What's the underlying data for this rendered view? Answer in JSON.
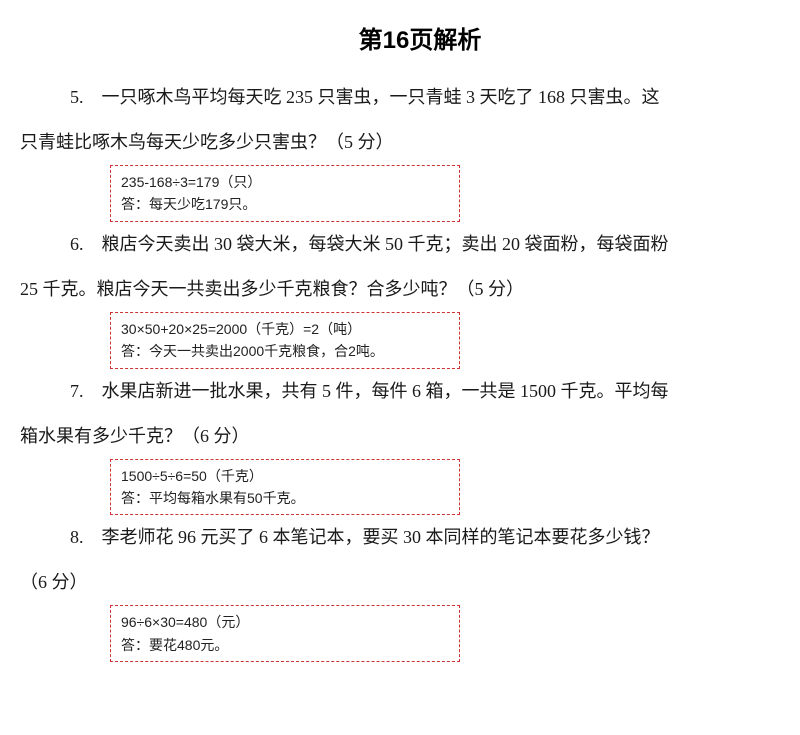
{
  "title": "第16页解析",
  "problems": {
    "p5": {
      "line1": "5.　一只啄木鸟平均每天吃 235 只害虫，一只青蛙 3 天吃了 168 只害虫。这",
      "line2": "只青蛙比啄木鸟每天少吃多少只害虫？（5 分）",
      "answer": {
        "calc": "235-168÷3=179（只）",
        "text": "答：每天少吃179只。"
      }
    },
    "p6": {
      "line1": "6.　粮店今天卖出 30 袋大米，每袋大米 50 千克；卖出 20 袋面粉，每袋面粉",
      "line2": "25 千克。粮店今天一共卖出多少千克粮食？合多少吨？（5 分）",
      "answer": {
        "calc": "30×50+20×25=2000（千克）=2（吨）",
        "text": "答：今天一共卖出2000千克粮食，合2吨。"
      }
    },
    "p7": {
      "line1": "7.　水果店新进一批水果，共有 5 件，每件 6 箱，一共是 1500 千克。平均每",
      "line2": "箱水果有多少千克？（6 分）",
      "answer": {
        "calc": "1500÷5÷6=50（千克）",
        "text": "答：平均每箱水果有50千克。"
      }
    },
    "p8": {
      "line1": "8.　李老师花 96 元买了 6 本笔记本，要买 30 本同样的笔记本要花多少钱？",
      "line2": "（6 分）",
      "answer": {
        "calc": "96÷6×30=480（元）",
        "text": "答：要花480元。"
      }
    }
  },
  "styles": {
    "title_fontsize": 24,
    "problem_fontsize": 18,
    "answer_fontsize": 14,
    "answer_border_color": "#cc3333",
    "text_color": "#1a1a1a",
    "background_color": "#ffffff"
  }
}
